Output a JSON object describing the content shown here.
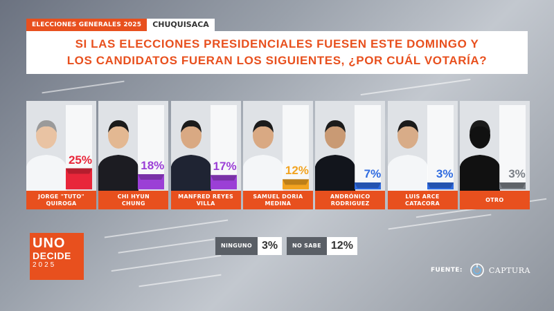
{
  "header": {
    "tag": "ELECCIONES GENERALES 2025",
    "region": "CHUQUISACA",
    "question_line1": "SI LAS ELECCIONES PRESIDENCIALES FUESEN ESTE DOMINGO Y",
    "question_line2": "LOS CANDIDATOS FUERAN LOS SIGUIENTES, ¿POR CUÁL VOTARÍA?"
  },
  "chart_data": {
    "type": "bar",
    "categories": [
      "JORGE \"TUTO\" QUIROGA",
      "CHI HYUN CHUNG",
      "MANFRED REYES VILLA",
      "SAMUEL DORIA MEDINA",
      "ANDRÓNICO RODRÍGUEZ",
      "LUIS ARCE CATACORA",
      "OTRO"
    ],
    "values": [
      25,
      18,
      17,
      12,
      7,
      3,
      3
    ],
    "ylim": [
      0,
      100
    ],
    "unit": "%",
    "candidates": [
      {
        "line1": "JORGE \"TUTO\"",
        "line2": "QUIROGA",
        "value": 25,
        "label": "25%",
        "color": "#e8263a"
      },
      {
        "line1": "CHI HYUN",
        "line2": "CHUNG",
        "value": 18,
        "label": "18%",
        "color": "#9b3fd6"
      },
      {
        "line1": "MANFRED REYES",
        "line2": "VILLA",
        "value": 17,
        "label": "17%",
        "color": "#9b3fd6"
      },
      {
        "line1": "SAMUEL DORIA",
        "line2": "MEDINA",
        "value": 12,
        "label": "12%",
        "color": "#f2a31f"
      },
      {
        "line1": "ANDRÓNICO",
        "line2": "RODRIGUEZ",
        "value": 7,
        "label": "7%",
        "color": "#2f6be0"
      },
      {
        "line1": "LUIS ARCE",
        "line2": "CATACORA",
        "value": 3,
        "label": "3%",
        "color": "#2f6be0"
      },
      {
        "line1": "OTRO",
        "line2": "",
        "value": 3,
        "label": "3%",
        "color": "#7a7f86"
      }
    ]
  },
  "extras": [
    {
      "label": "NINGUNO",
      "value": "3%"
    },
    {
      "label": "NO SABE",
      "value": "12%"
    }
  ],
  "logo": {
    "line1": "UNO",
    "line2": "DECIDE",
    "line3": "2025"
  },
  "source": {
    "label": "FUENTE:",
    "brand": "CAPTURA",
    "icon": "captura-logo-icon"
  }
}
